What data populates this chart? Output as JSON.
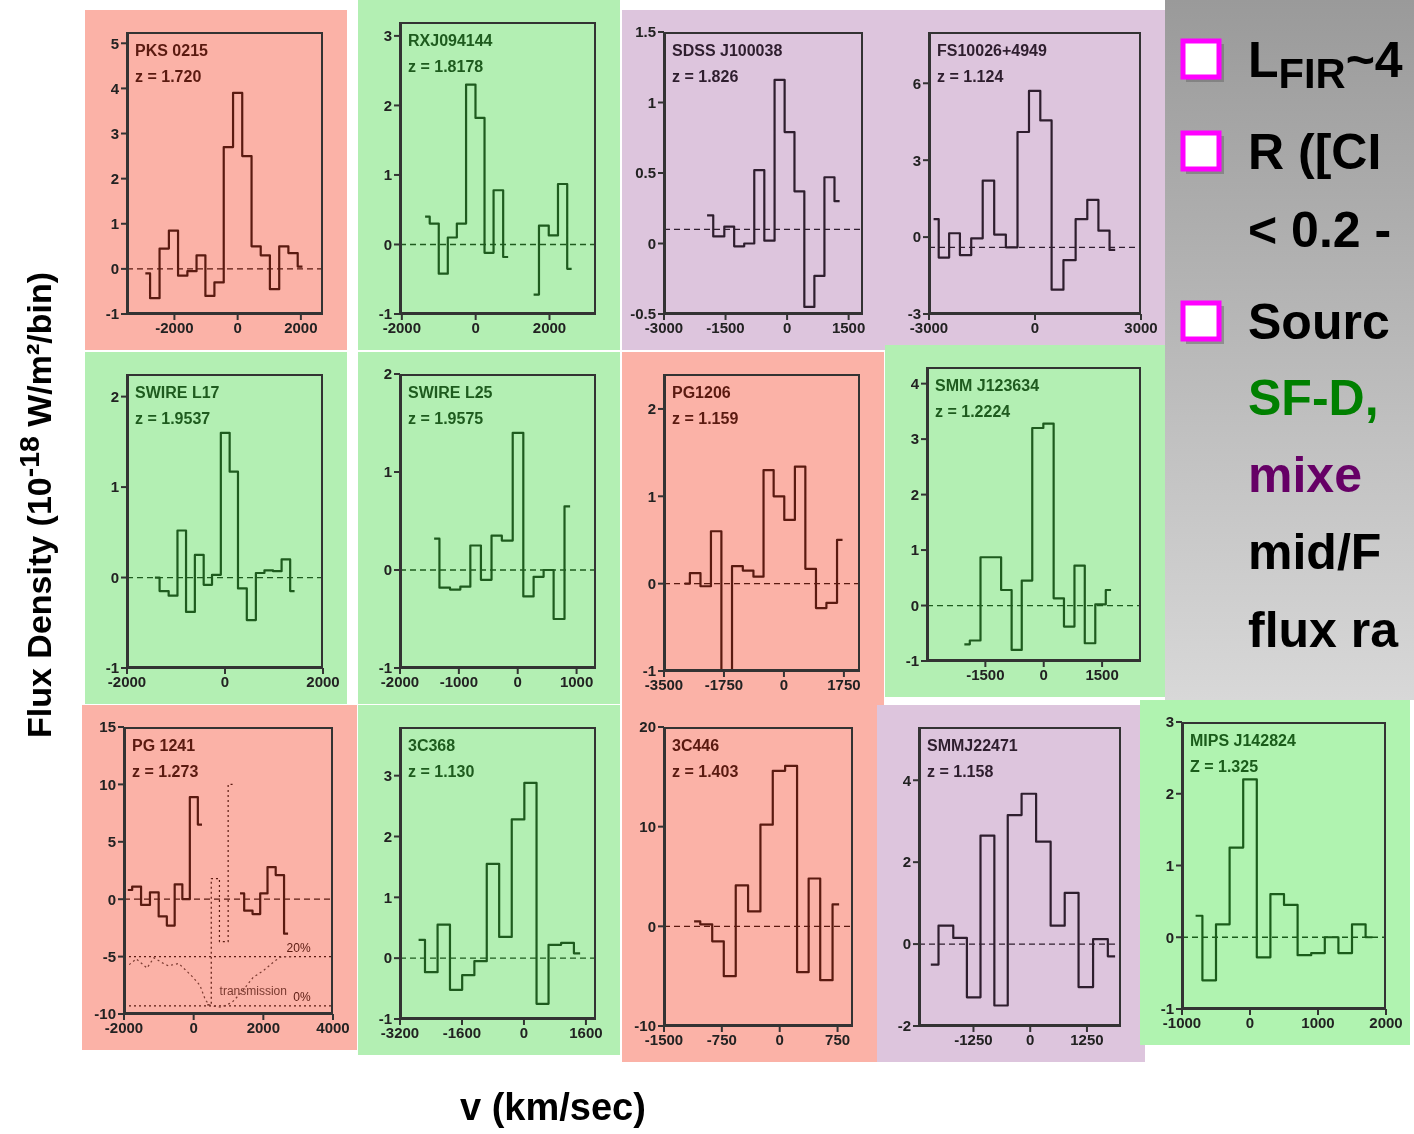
{
  "chart_data": [
    {
      "type": "step",
      "title": "PKS 0215",
      "subtitle": "z = 1.720",
      "color": "#5a1a10",
      "x": [
        -2920,
        -2620,
        -2320,
        -2030,
        -1740,
        -1440,
        -1160,
        -880,
        -590,
        -290,
        0,
        290,
        590,
        870,
        1170,
        1460,
        1750,
        2050
      ],
      "values": [
        -0.1,
        -0.65,
        0.45,
        0.85,
        -0.15,
        -0.05,
        0.3,
        -0.6,
        -0.3,
        2.7,
        3.9,
        2.5,
        0.5,
        0.3,
        -0.45,
        0.5,
        0.35,
        0.05
      ],
      "xlim": [
        -3500,
        2700
      ],
      "xticks": [
        -2000,
        0,
        2000
      ],
      "ylim": [
        -1,
        5.25
      ],
      "yticks": [
        -1,
        0,
        1,
        2,
        3,
        4,
        5
      ],
      "ref_lines": [
        {
          "axis": "y",
          "value": 0,
          "line_style": "dashed"
        }
      ]
    },
    {
      "type": "step",
      "title": "RXJ094144",
      "subtitle": "z = 1.8178",
      "color": "#1e5b1e",
      "x": [
        -1370,
        -1120,
        -880,
        -630,
        -390,
        -130,
        120,
        360,
        610,
        880,
        1220,
        1570,
        1860,
        2100,
        2360,
        2600
      ],
      "values": [
        0.4,
        0.3,
        -0.42,
        0.1,
        0.3,
        2.3,
        1.82,
        -0.12,
        0.78,
        -0.18,
        null,
        -0.72,
        0.27,
        0.13,
        0.87,
        -0.35
      ],
      "xlim": [
        -2050,
        3260
      ],
      "xticks": [
        -2000,
        0,
        2000
      ],
      "ylim": [
        -1,
        3.2
      ],
      "yticks": [
        -1,
        0,
        1,
        2,
        3
      ],
      "ref_lines": [
        {
          "axis": "y",
          "value": 0,
          "line_style": "dashed"
        }
      ]
    },
    {
      "type": "step",
      "title": "SDSS J100038",
      "subtitle": "z = 1.826",
      "color": "#2e1e2e",
      "x": [
        -1950,
        -1650,
        -1410,
        -1170,
        -920,
        -680,
        -430,
        -180,
        60,
        300,
        540,
        790,
        1030,
        1280
      ],
      "values": [
        0.2,
        0.05,
        0.12,
        -0.02,
        0,
        0.52,
        0.02,
        1.16,
        0.79,
        0.37,
        -0.45,
        -0.23,
        0.47,
        0.3
      ],
      "xlim": [
        -3000,
        1850
      ],
      "xticks": [
        -3000,
        -1500,
        0,
        1500
      ],
      "ylim": [
        -0.5,
        1.5
      ],
      "yticks": [
        -0.5,
        0,
        0.5,
        1,
        1.5
      ],
      "ref_lines": [
        {
          "axis": "y",
          "value": 0.1,
          "line_style": "dashed"
        }
      ]
    },
    {
      "type": "step",
      "title": "FS10026+4949",
      "subtitle": "z = 1.124",
      "color": "#2e1e2e",
      "x": [
        -2870,
        -2580,
        -2280,
        -1970,
        -1640,
        -1320,
        -990,
        -660,
        -330,
        -10,
        310,
        630,
        980,
        1320,
        1640,
        1950,
        2270
      ],
      "values": [
        0.7,
        -0.8,
        0.15,
        -0.7,
        -0.05,
        2.2,
        0.1,
        -0.4,
        4.1,
        5.7,
        4.55,
        -2.05,
        -0.9,
        0.7,
        1.45,
        0.25,
        -0.5
      ],
      "xlim": [
        -3000,
        3000
      ],
      "xticks": [
        -3000,
        0,
        3000
      ],
      "ylim": [
        -3,
        8
      ],
      "yticks": [
        -3,
        0,
        3,
        6
      ],
      "ref_lines": [
        {
          "axis": "y",
          "value": -0.4,
          "line_style": "dashed"
        }
      ]
    },
    {
      "type": "step",
      "title": "SWIRE L17",
      "subtitle": "z = 1.9537",
      "color": "#1e5b1e",
      "x": [
        -1430,
        -1240,
        -1060,
        -880,
        -710,
        -520,
        -350,
        -180,
        10,
        180,
        350,
        540,
        720,
        890,
        1070,
        1240,
        1420
      ],
      "values": [
        0,
        -0.15,
        -0.2,
        0.52,
        -0.38,
        0.25,
        -0.08,
        0.03,
        1.6,
        1.17,
        -0.12,
        -0.47,
        0.05,
        0.08,
        0.07,
        0.2,
        -0.15
      ],
      "xlim": [
        -2000,
        2000
      ],
      "xticks": [
        -2000,
        0,
        2000
      ],
      "ylim": [
        -1,
        2.25
      ],
      "yticks": [
        -1,
        0,
        1,
        2
      ],
      "ref_lines": [
        {
          "axis": "y",
          "value": 0,
          "line_style": "dashed"
        }
      ]
    },
    {
      "type": "step",
      "title": "SWIRE L25",
      "subtitle": "z = 1.9575",
      "color": "#1e5b1e",
      "x": [
        -1420,
        -1240,
        -1060,
        -890,
        -720,
        -530,
        -360,
        -180,
        10,
        180,
        360,
        520,
        700,
        890
      ],
      "values": [
        0.32,
        -0.18,
        -0.2,
        -0.17,
        0.25,
        -0.1,
        0.35,
        0.3,
        1.4,
        -0.27,
        -0.07,
        0,
        -0.5,
        0.65
      ],
      "xlim": [
        -2000,
        1330
      ],
      "xticks": [
        -2000,
        -1000,
        0,
        1000
      ],
      "ylim": [
        -1,
        2
      ],
      "yticks": [
        -1,
        0,
        1,
        2
      ],
      "ref_lines": [
        {
          "axis": "y",
          "value": 0,
          "line_style": "dashed"
        }
      ]
    },
    {
      "type": "step",
      "title": "PG1206",
      "subtitle": "z = 1.159",
      "color": "#5a1a10",
      "x": [
        -2900,
        -2590,
        -2280,
        -1980,
        -1670,
        -1360,
        -1040,
        -740,
        -450,
        -150,
        170,
        470,
        780,
        1090,
        1390,
        1710
      ],
      "values": [
        0,
        0.12,
        -0.03,
        0.6,
        -1,
        0.2,
        0.15,
        0.08,
        1.3,
        1,
        0.73,
        1.34,
        0.17,
        -0.28,
        -0.22,
        0.5
      ],
      "xlim": [
        -3500,
        2220
      ],
      "xticks": [
        -3500,
        -1750,
        0,
        1750
      ],
      "ylim": [
        -1,
        2.4
      ],
      "yticks": [
        -1,
        0,
        1,
        2
      ],
      "ref_lines": [
        {
          "axis": "y",
          "value": 0,
          "line_style": "dashed"
        }
      ]
    },
    {
      "type": "step",
      "title": "SMM J123634",
      "subtitle": "z = 1.2224",
      "color": "#1e5b1e",
      "x": [
        -2040,
        -1760,
        -1490,
        -1230,
        -960,
        -690,
        -440,
        -150,
        130,
        380,
        660,
        920,
        1190,
        1460,
        1730
      ],
      "values": [
        -0.7,
        -0.63,
        0.87,
        0.87,
        0.28,
        -0.8,
        0.45,
        3.2,
        3.28,
        0.13,
        -0.38,
        0.72,
        -0.68,
        0.02,
        0.28
      ],
      "xlim": [
        -3000,
        2500
      ],
      "xticks": [
        -1500,
        0,
        1500
      ],
      "ylim": [
        -1,
        4.3
      ],
      "yticks": [
        -1,
        0,
        1,
        2,
        3,
        4
      ],
      "ref_lines": [
        {
          "axis": "y",
          "value": 0,
          "line_style": "dashed"
        }
      ]
    },
    {
      "type": "step",
      "title": "PG 1241",
      "subtitle": "z = 1.273",
      "color": "#5a1a10",
      "series": [
        {
          "x": [
            -1890,
            -1640,
            -1380,
            -1130,
            -880,
            -660,
            -430,
            -220,
            0,
            240,
            390,
            620,
            860,
            1120,
            1330,
            1570,
            1810,
            2010,
            2230,
            2480,
            2710
          ],
          "values": [
            0.8,
            1.1,
            -0.5,
            0.6,
            -1.5,
            -2.3,
            1.3,
            0,
            8.9,
            6.5,
            null,
            null,
            null,
            null,
            0.5,
            -1,
            -1.3,
            0.5,
            2.8,
            2.1,
            -3
          ],
          "color": "#5a1a10"
        },
        {
          "x": [
            390,
            620,
            860,
            1120
          ],
          "values": [
            -9.2,
            1.8,
            -3.7,
            10
          ],
          "color": "#5a1a10",
          "line_style": "dotted"
        },
        {
          "name": "transmission",
          "type": "line",
          "line_style": "dotted",
          "color": "#7a3a30",
          "x": [
            -1850,
            -1650,
            -1490,
            -1340,
            -1140,
            -930,
            -730,
            -430,
            -220,
            -20,
            180,
            340,
            490,
            790,
            1100,
            1400,
            1710,
            2010,
            2320,
            2520,
            2820
          ],
          "values": [
            -5.7,
            -5.2,
            -5.6,
            -6,
            -5.1,
            -5.5,
            -5.8,
            -5.6,
            -6.2,
            -6.8,
            -7.5,
            -8.8,
            -9.3,
            -9.4,
            -9,
            -8,
            -6.8,
            -6.2,
            -5.4,
            -5,
            -5
          ]
        }
      ],
      "xlim": [
        -2000,
        4000
      ],
      "xticks": [
        -2000,
        0,
        2000,
        4000
      ],
      "ylim": [
        -10,
        15
      ],
      "yticks": [
        -10,
        -5,
        0,
        5,
        10,
        15
      ],
      "ref_lines": [
        {
          "axis": "y",
          "value": 0,
          "line_style": "dashed"
        },
        {
          "axis": "y",
          "value": -5,
          "line_style": "dotted"
        },
        {
          "axis": "y",
          "value": -9.3,
          "line_style": "dotted"
        }
      ],
      "annotations": [
        {
          "text": "20%",
          "x": 3500,
          "y": -5
        },
        {
          "text": "0%",
          "x": 3500,
          "y": -9.3
        }
      ]
    },
    {
      "type": "step",
      "title": "3C368",
      "subtitle": "z = 1.130",
      "color": "#1e5b1e",
      "x": [
        -2720,
        -2390,
        -2070,
        -1750,
        -1440,
        -1120,
        -800,
        -480,
        -150,
        170,
        480,
        790,
        1130,
        1450
      ],
      "values": [
        0.3,
        -0.23,
        0.55,
        -0.52,
        -0.28,
        -0.05,
        1.55,
        0.35,
        2.28,
        2.88,
        -0.75,
        0.22,
        0.25,
        0.08
      ],
      "xlim": [
        -3200,
        1860
      ],
      "xticks": [
        -3200,
        -1600,
        0,
        1600
      ],
      "ylim": [
        -1,
        3.8
      ],
      "yticks": [
        -1,
        0,
        1,
        2,
        3
      ],
      "ref_lines": [
        {
          "axis": "y",
          "value": 0,
          "line_style": "dashed"
        }
      ]
    },
    {
      "type": "step",
      "title": "3C446",
      "subtitle": "z = 1.403",
      "color": "#5a1a10",
      "x": [
        -1110,
        -950,
        -800,
        -650,
        -490,
        -330,
        -170,
        -10,
        150,
        300,
        450,
        600,
        770
      ],
      "values": [
        0.5,
        0.2,
        -1.5,
        -5,
        4.1,
        1.5,
        10.2,
        15.6,
        16.1,
        -4.6,
        4.8,
        -5.4,
        2.2
      ],
      "xlim": [
        -1500,
        950
      ],
      "xticks": [
        -1500,
        -750,
        0,
        750
      ],
      "ylim": [
        -10,
        20
      ],
      "yticks": [
        -10,
        0,
        10,
        20
      ],
      "ref_lines": [
        {
          "axis": "y",
          "value": 0,
          "line_style": "dashed"
        }
      ]
    },
    {
      "type": "step",
      "title": "SMMJ22471",
      "subtitle": "z = 1.158",
      "color": "#2e1e2e",
      "x": [
        -2190,
        -1850,
        -1540,
        -1250,
        -940,
        -640,
        -350,
        -30,
        290,
        610,
        910,
        1220,
        1550,
        1870
      ],
      "values": [
        -0.5,
        0.45,
        0.15,
        -1.3,
        2.65,
        -1.5,
        3.15,
        3.67,
        2.5,
        0.45,
        1.25,
        -1.05,
        0.12,
        -0.3
      ],
      "xlim": [
        -2450,
        2000
      ],
      "xticks": [
        -1250,
        0,
        1250
      ],
      "ylim": [
        -2,
        5.3
      ],
      "yticks": [
        -2,
        0,
        2,
        4
      ],
      "ref_lines": [
        {
          "axis": "y",
          "value": 0,
          "line_style": "dashed"
        }
      ]
    },
    {
      "type": "step",
      "title": "MIPS J142824",
      "subtitle": "Z = 1.325",
      "color": "#1a5c1a",
      "x": [
        -800,
        -600,
        -400,
        -200,
        0,
        200,
        400,
        600,
        800,
        1000,
        1200,
        1400,
        1600,
        1800
      ],
      "values": [
        0.3,
        -0.6,
        0.18,
        1.25,
        2.2,
        -0.28,
        0.6,
        0.45,
        -0.25,
        -0.22,
        0,
        -0.22,
        0.18,
        0
      ],
      "xlim": [
        -1000,
        2000
      ],
      "xticks": [
        -1000,
        0,
        1000,
        2000
      ],
      "ylim": [
        -1,
        3
      ],
      "yticks": [
        -1,
        0,
        1,
        2,
        3
      ],
      "ref_lines": [
        {
          "axis": "y",
          "value": 0,
          "line_style": "dashed"
        }
      ]
    },
    {
      "type": "other",
      "xlabel": "v (km/sec)",
      "ylabel": "Flux Density (10$^{-18}$ W/m²/bin)",
      "annotations": [
        "L$_{FIR}$~4",
        "R ([CI",
        "< 0.2 -",
        "Sourc",
        "SF-D,",
        "mixe",
        "mid/F",
        "flux ra"
      ],
      "colors": [
        "#000000",
        "#000000",
        "#000000",
        "#000000",
        "#008000",
        "#660066",
        "#000000",
        "#000000"
      ]
    }
  ]
}
